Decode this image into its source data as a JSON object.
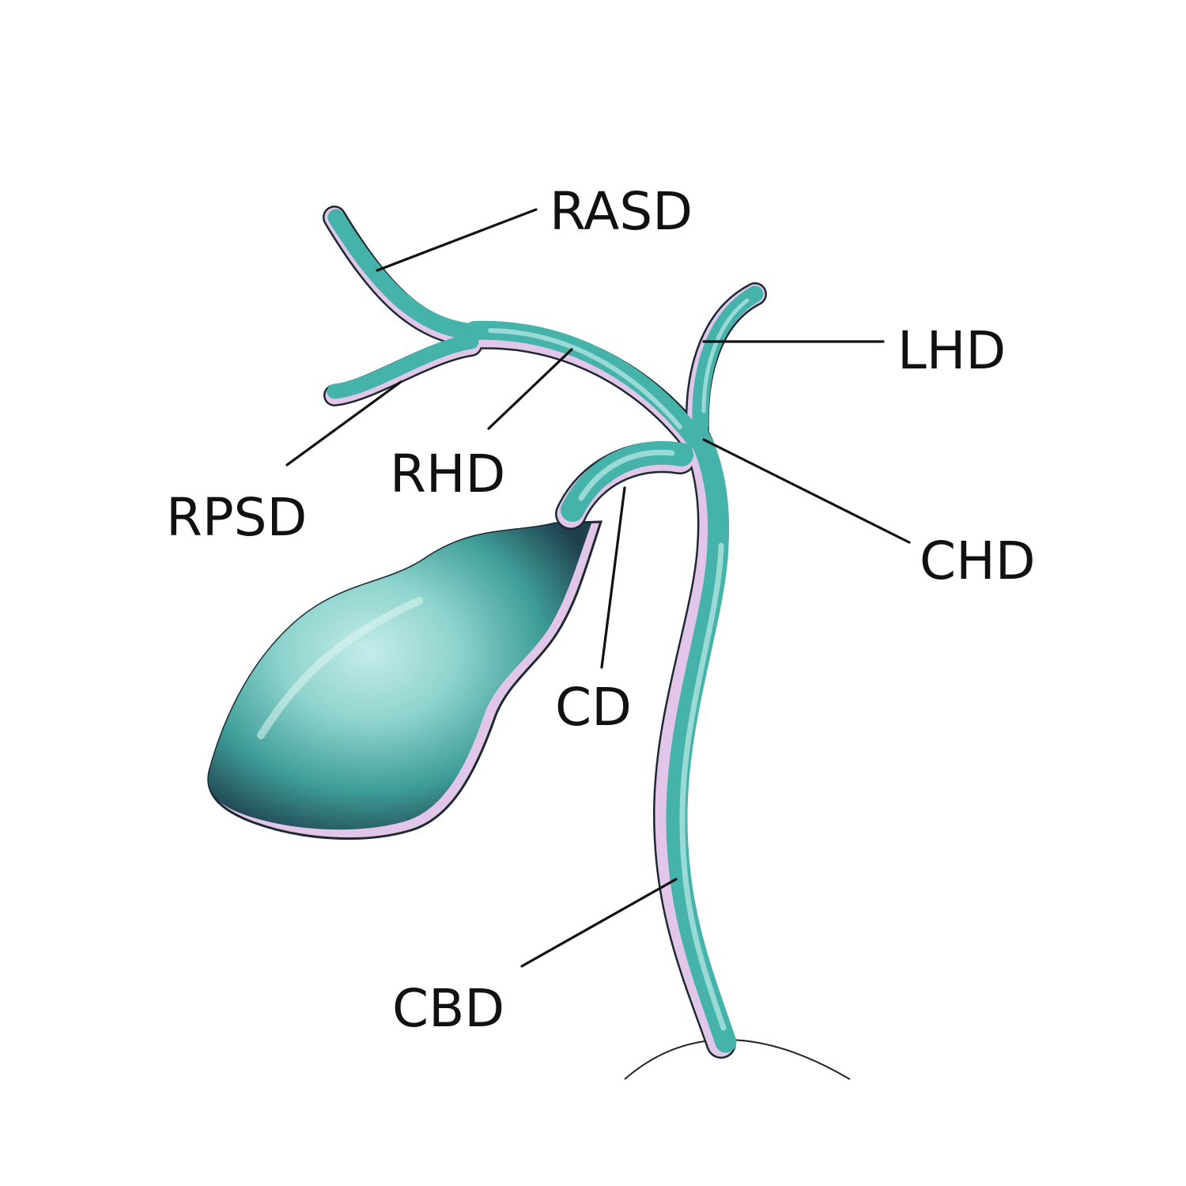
{
  "diagram": {
    "labels": {
      "rasd": "RASD",
      "lhd": "LHD",
      "rhd": "RHD",
      "rpsd": "RPSD",
      "chd": "CHD",
      "cd": "CD",
      "cbd": "CBD"
    },
    "colors": {
      "duct": "#46b3ab",
      "duct_highlight": "#b6e7e4",
      "duct_shadow": "#1f3f4f",
      "rim": "#e2c6ea",
      "outline": "#1c2a30",
      "label": "#111111",
      "background": "#ffffff"
    }
  }
}
